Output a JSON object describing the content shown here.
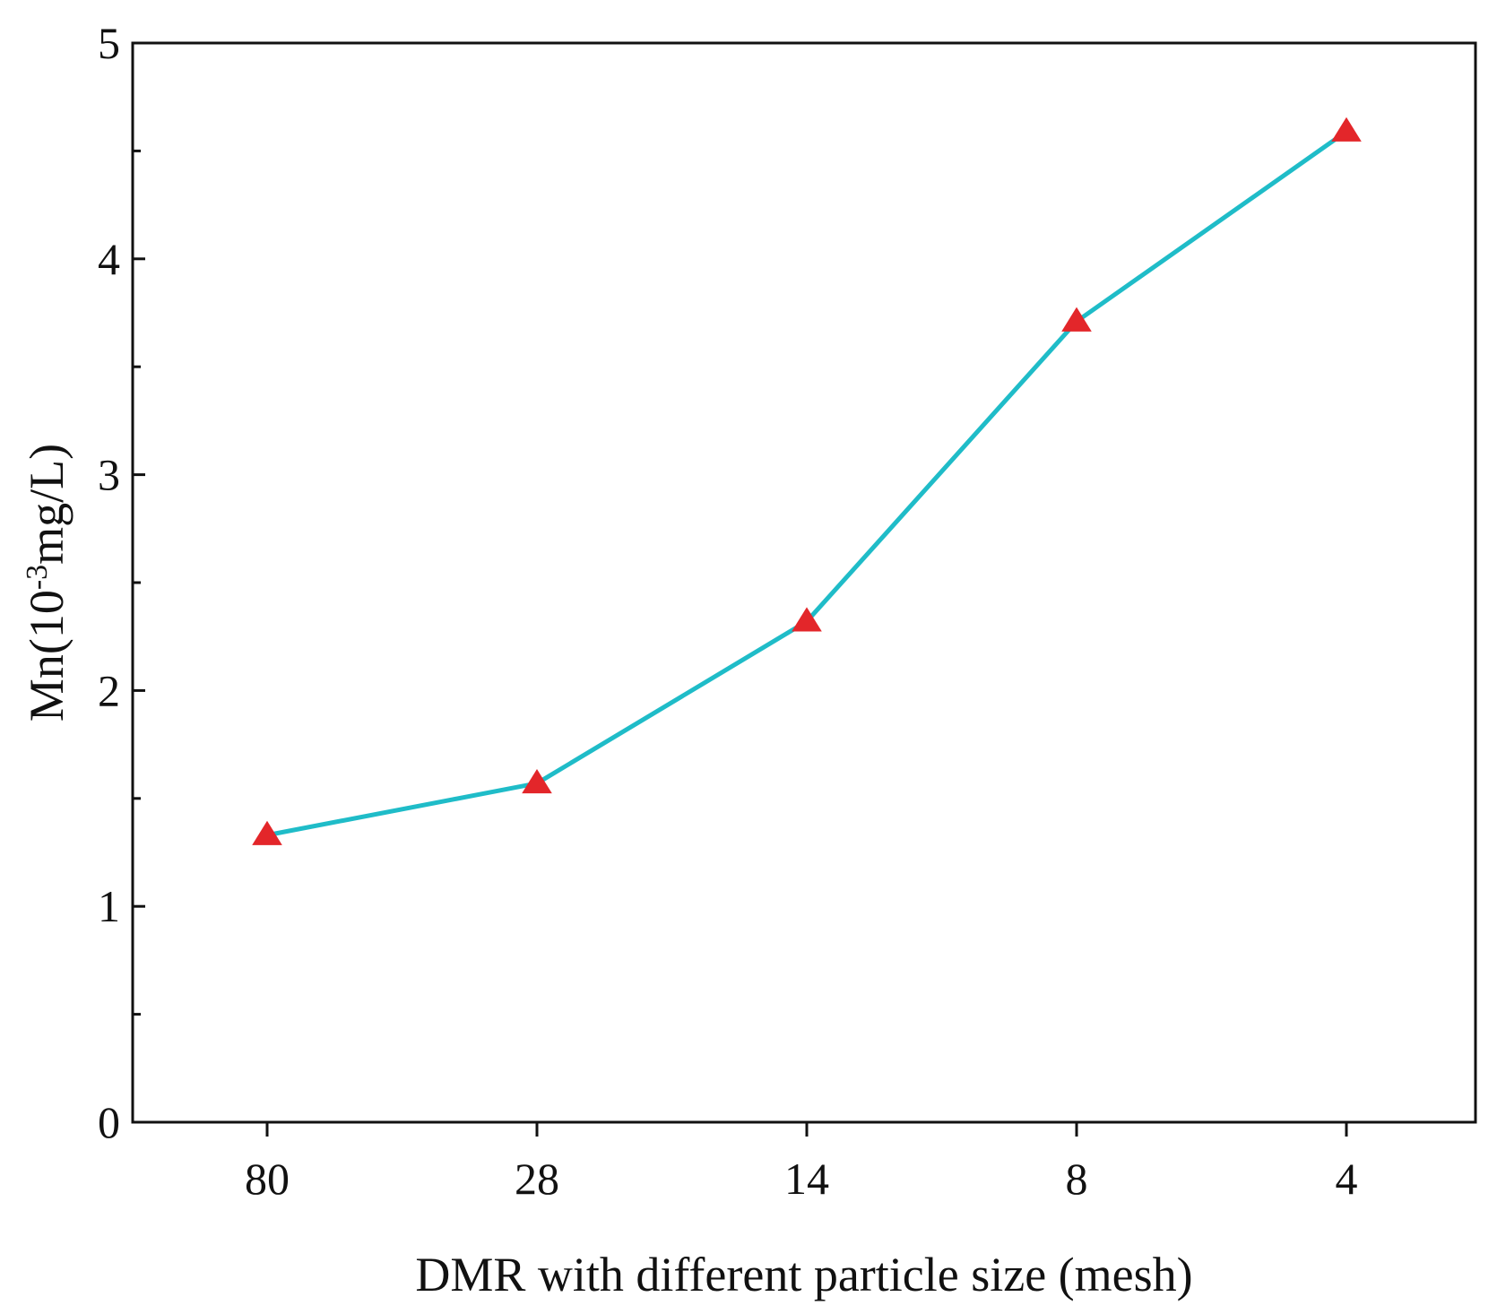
{
  "chart_data": {
    "type": "line",
    "title": "",
    "xlabel": "DMR with different particle size (mesh)",
    "ylabel": {
      "prefix": "Mn(10",
      "superscript": "-3",
      "suffix": "mg/L)"
    },
    "categories": [
      "80",
      "28",
      "14",
      "8",
      "4"
    ],
    "series": [
      {
        "name": "Mn",
        "values": [
          1.33,
          1.57,
          2.32,
          3.71,
          4.59
        ],
        "line_color": "#1FBCC8",
        "marker": "triangle",
        "marker_color": "#E3262A"
      }
    ],
    "ylim": [
      0,
      5
    ],
    "yticks": [
      "0",
      "1",
      "2",
      "3",
      "4",
      "5"
    ],
    "y_minor_step": 0.5,
    "grid": false,
    "legend": "none"
  }
}
